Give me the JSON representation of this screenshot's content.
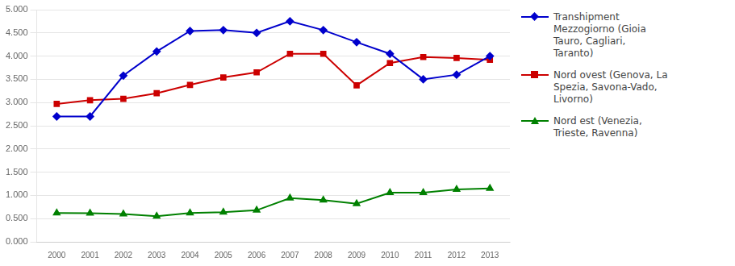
{
  "chart_data": {
    "type": "line",
    "x": [
      2000,
      2001,
      2002,
      2003,
      2004,
      2005,
      2006,
      2007,
      2008,
      2009,
      2010,
      2011,
      2012,
      2013
    ],
    "series": [
      {
        "name": "Transhipment\nMezzogiorno (Gioia\nTauro, Cagliari,\nTaranto)",
        "color": "#0000CC",
        "marker": "diamond",
        "values": [
          2.7,
          2.7,
          3.58,
          4.1,
          4.54,
          4.56,
          4.5,
          4.75,
          4.56,
          4.3,
          4.05,
          3.5,
          3.6,
          4.0
        ]
      },
      {
        "name": "Nord ovest (Genova, La\nSpezia, Savona-Vado,\nLivorno)",
        "color": "#CC0000",
        "marker": "square",
        "values": [
          2.97,
          3.05,
          3.08,
          3.2,
          3.38,
          3.54,
          3.65,
          4.05,
          4.05,
          3.37,
          3.85,
          3.98,
          3.96,
          3.92
        ]
      },
      {
        "name": "Nord est (Venezia,\nTrieste, Ravenna)",
        "color": "#008000",
        "marker": "triangle",
        "values": [
          0.62,
          0.615,
          0.6,
          0.55,
          0.62,
          0.64,
          0.68,
          0.94,
          0.9,
          0.82,
          1.06,
          1.06,
          1.13,
          1.15
        ]
      }
    ],
    "xlim": [
      1999.4,
      2013.6
    ],
    "xticks": [
      2000,
      2001,
      2002,
      2003,
      2004,
      2005,
      2006,
      2007,
      2008,
      2009,
      2010,
      2011,
      2012,
      2013
    ],
    "ylim": [
      0.0,
      5.0
    ],
    "yticks": [
      {
        "value": 0.0,
        "label": "0.000"
      },
      {
        "value": 0.5,
        "label": "0.500"
      },
      {
        "value": 1.0,
        "label": "1.000"
      },
      {
        "value": 1.5,
        "label": "1.500"
      },
      {
        "value": 2.0,
        "label": "2.000"
      },
      {
        "value": 2.5,
        "label": "2.500"
      },
      {
        "value": 3.0,
        "label": "3.000"
      },
      {
        "value": 3.5,
        "label": "3.500"
      },
      {
        "value": 4.0,
        "label": "4.000"
      },
      {
        "value": 4.5,
        "label": "4.500"
      },
      {
        "value": 5.0,
        "label": "5.000"
      }
    ],
    "grid": "y",
    "legend": "right"
  }
}
